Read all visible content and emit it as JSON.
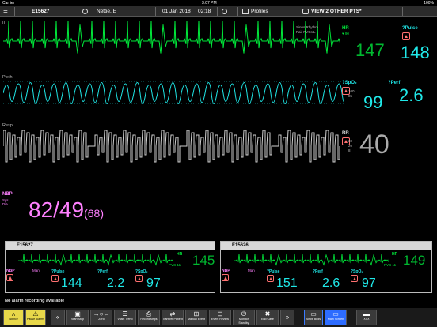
{
  "status_bar": {
    "carrier": "Carrier",
    "time": "3:07 PM",
    "battery": "100%"
  },
  "header": {
    "bed": "E15627",
    "patient": "Nettie, E",
    "date": "01 Jan 2018",
    "time": "02:18",
    "profiles_label": "Profiles",
    "view_others_label": "VIEW 2 OTHER PTS*"
  },
  "waves": {
    "ecg": {
      "label": "II",
      "annotation_line1": "Sinus Rhythm",
      "annotation_line2": "Pair PVCs  L"
    },
    "pleth": {
      "label": "Pleth"
    },
    "resp": {
      "label": "Resp"
    }
  },
  "params": {
    "hr": {
      "label": "HR",
      "sub_label": "♥ 90",
      "value": "147"
    },
    "pulse": {
      "label": "?Pulse",
      "value": "148"
    },
    "spo2": {
      "label": "?SpO₂",
      "limit_high": "100",
      "limit_low": "85",
      "value": "99"
    },
    "perf": {
      "label": "?Perf",
      "value": "2.6"
    },
    "rr": {
      "label": "RR",
      "limit_high": "30",
      "limit_mid": "20",
      "limit_low": "8",
      "value": "40"
    },
    "nbp": {
      "label": "NBP",
      "sub1": "Sys.",
      "sub2": "Dia.",
      "value": "82/49",
      "mean": "(68)"
    }
  },
  "other_patients": [
    {
      "bed": "E15627",
      "hr_label": "HR",
      "hr": "145",
      "pvc": "PVC  11",
      "nbp_label": "NBP",
      "nbp_mode": "Man",
      "pulse_label": "?Pulse",
      "pulse": "144",
      "perf_label": "?Perf",
      "perf": "2.2",
      "spo2_label": "?SpO₂",
      "spo2": "97"
    },
    {
      "bed": "E15626",
      "hr_label": "HR",
      "hr": "149",
      "pvc": "PVC  11",
      "nbp_label": "NBP",
      "nbp_mode": "Man",
      "pulse_label": "?Pulse",
      "pulse": "151",
      "perf_label": "?Perf",
      "perf": "2.6",
      "spo2_label": "?SpO₂",
      "spo2": "97"
    }
  ],
  "message": "No alarm recording available",
  "toolbar": {
    "silence": "Silence",
    "pause_alarms": "Pause Alarms",
    "start_stop": "Start Stop",
    "zero": "Zero",
    "vitals_trend": "Vitals Trend",
    "record_strips": "Record strips",
    "transfer_patient": "Transfer Patient",
    "manual_event": "Manual Event",
    "event_review": "Event Review",
    "monitor_standby": "Monitor Standby",
    "end_case": "End Case",
    "show_beds": "Show Beds",
    "main_screen": "Main Screen",
    "xxx": "XXX"
  },
  "colors": {
    "ecg": "#00e83a",
    "pleth": "#20e8e8",
    "resp": "#d0d0d0",
    "nbp": "#ff80ff",
    "alarm": "#ff7070",
    "panel_ecg": "#00e83a"
  }
}
